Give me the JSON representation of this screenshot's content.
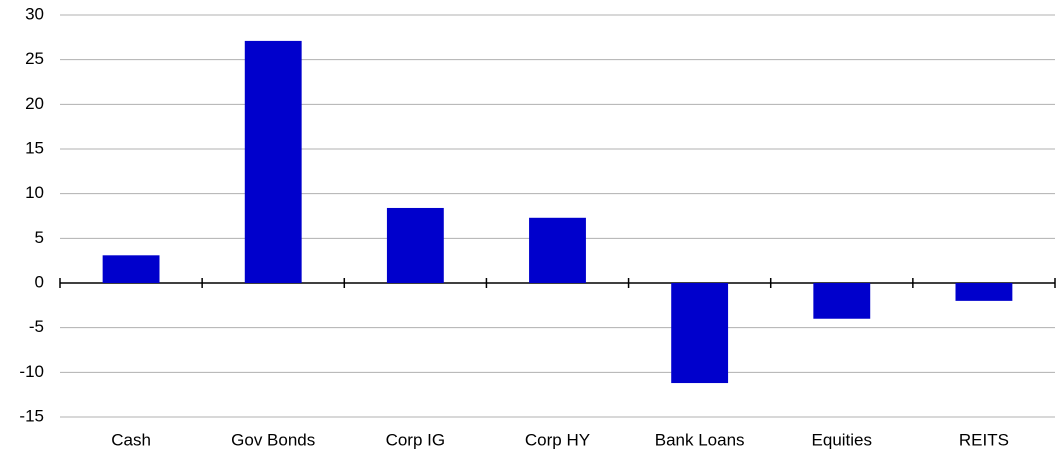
{
  "chart_data": {
    "type": "bar",
    "categories": [
      "Cash",
      "Gov Bonds",
      "Corp IG",
      "Corp HY",
      "Bank Loans",
      "Equities",
      "REITS"
    ],
    "values": [
      3.1,
      27.1,
      8.4,
      7.3,
      -11.2,
      -4.0,
      -2.0
    ],
    "color": "#0000cc",
    "ylim": [
      -15,
      30
    ],
    "yticks": [
      -15,
      -10,
      -5,
      0,
      5,
      10,
      15,
      20,
      25,
      30
    ],
    "grid": true
  }
}
